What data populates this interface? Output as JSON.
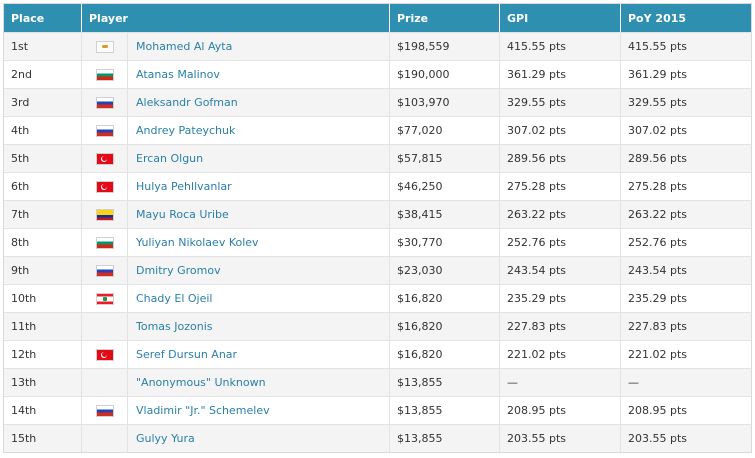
{
  "table": {
    "headers": {
      "place": "Place",
      "player": "Player",
      "prize": "Prize",
      "gpi": "GPI",
      "poy": "PoY 2015"
    },
    "rows": [
      {
        "place": "1st",
        "flag": "cy-flag-icon",
        "player": "Mohamed Al Ayta",
        "prize": "$198,559",
        "gpi": "415.55 pts",
        "poy": "415.55 pts"
      },
      {
        "place": "2nd",
        "flag": "bg-flag-icon",
        "player": "Atanas Malinov",
        "prize": "$190,000",
        "gpi": "361.29 pts",
        "poy": "361.29 pts"
      },
      {
        "place": "3rd",
        "flag": "ru-flag-icon",
        "player": "Aleksandr Gofman",
        "prize": "$103,970",
        "gpi": "329.55 pts",
        "poy": "329.55 pts"
      },
      {
        "place": "4th",
        "flag": "ru-flag-icon",
        "player": "Andrey Pateychuk",
        "prize": "$77,020",
        "gpi": "307.02 pts",
        "poy": "307.02 pts"
      },
      {
        "place": "5th",
        "flag": "tr-flag-icon",
        "player": "Ercan Olgun",
        "prize": "$57,815",
        "gpi": "289.56 pts",
        "poy": "289.56 pts"
      },
      {
        "place": "6th",
        "flag": "tr-flag-icon",
        "player": "Hulya Pehllvanlar",
        "prize": "$46,250",
        "gpi": "275.28 pts",
        "poy": "275.28 pts"
      },
      {
        "place": "7th",
        "flag": "co-flag-icon",
        "player": "Mayu Roca Uribe",
        "prize": "$38,415",
        "gpi": "263.22 pts",
        "poy": "263.22 pts"
      },
      {
        "place": "8th",
        "flag": "bg-flag-icon",
        "player": "Yuliyan Nikolaev Kolev",
        "prize": "$30,770",
        "gpi": "252.76 pts",
        "poy": "252.76 pts"
      },
      {
        "place": "9th",
        "flag": "ru-flag-icon",
        "player": "Dmitry Gromov",
        "prize": "$23,030",
        "gpi": "243.54 pts",
        "poy": "243.54 pts"
      },
      {
        "place": "10th",
        "flag": "lb-flag-icon",
        "player": "Chady El Ojeil",
        "prize": "$16,820",
        "gpi": "235.29 pts",
        "poy": "235.29 pts"
      },
      {
        "place": "11th",
        "flag": "",
        "player": "Tomas Jozonis",
        "prize": "$16,820",
        "gpi": "227.83 pts",
        "poy": "227.83 pts"
      },
      {
        "place": "12th",
        "flag": "tr-flag-icon",
        "player": "Seref Dursun Anar",
        "prize": "$16,820",
        "gpi": "221.02 pts",
        "poy": "221.02 pts"
      },
      {
        "place": "13th",
        "flag": "",
        "player": "\"Anonymous\" Unknown",
        "prize": "$13,855",
        "gpi": "—",
        "poy": "—"
      },
      {
        "place": "14th",
        "flag": "ru-flag-icon",
        "player": "Vladimir \"Jr.\" Schemelev",
        "prize": "$13,855",
        "gpi": "208.95 pts",
        "poy": "208.95 pts"
      },
      {
        "place": "15th",
        "flag": "",
        "player": "Gulyy Yura",
        "prize": "$13,855",
        "gpi": "203.55 pts",
        "poy": "203.55 pts"
      }
    ]
  },
  "colors": {
    "header_bg": "#2e8fb1",
    "link": "#2a7fa8",
    "row_alt": "#f4f4f4"
  }
}
